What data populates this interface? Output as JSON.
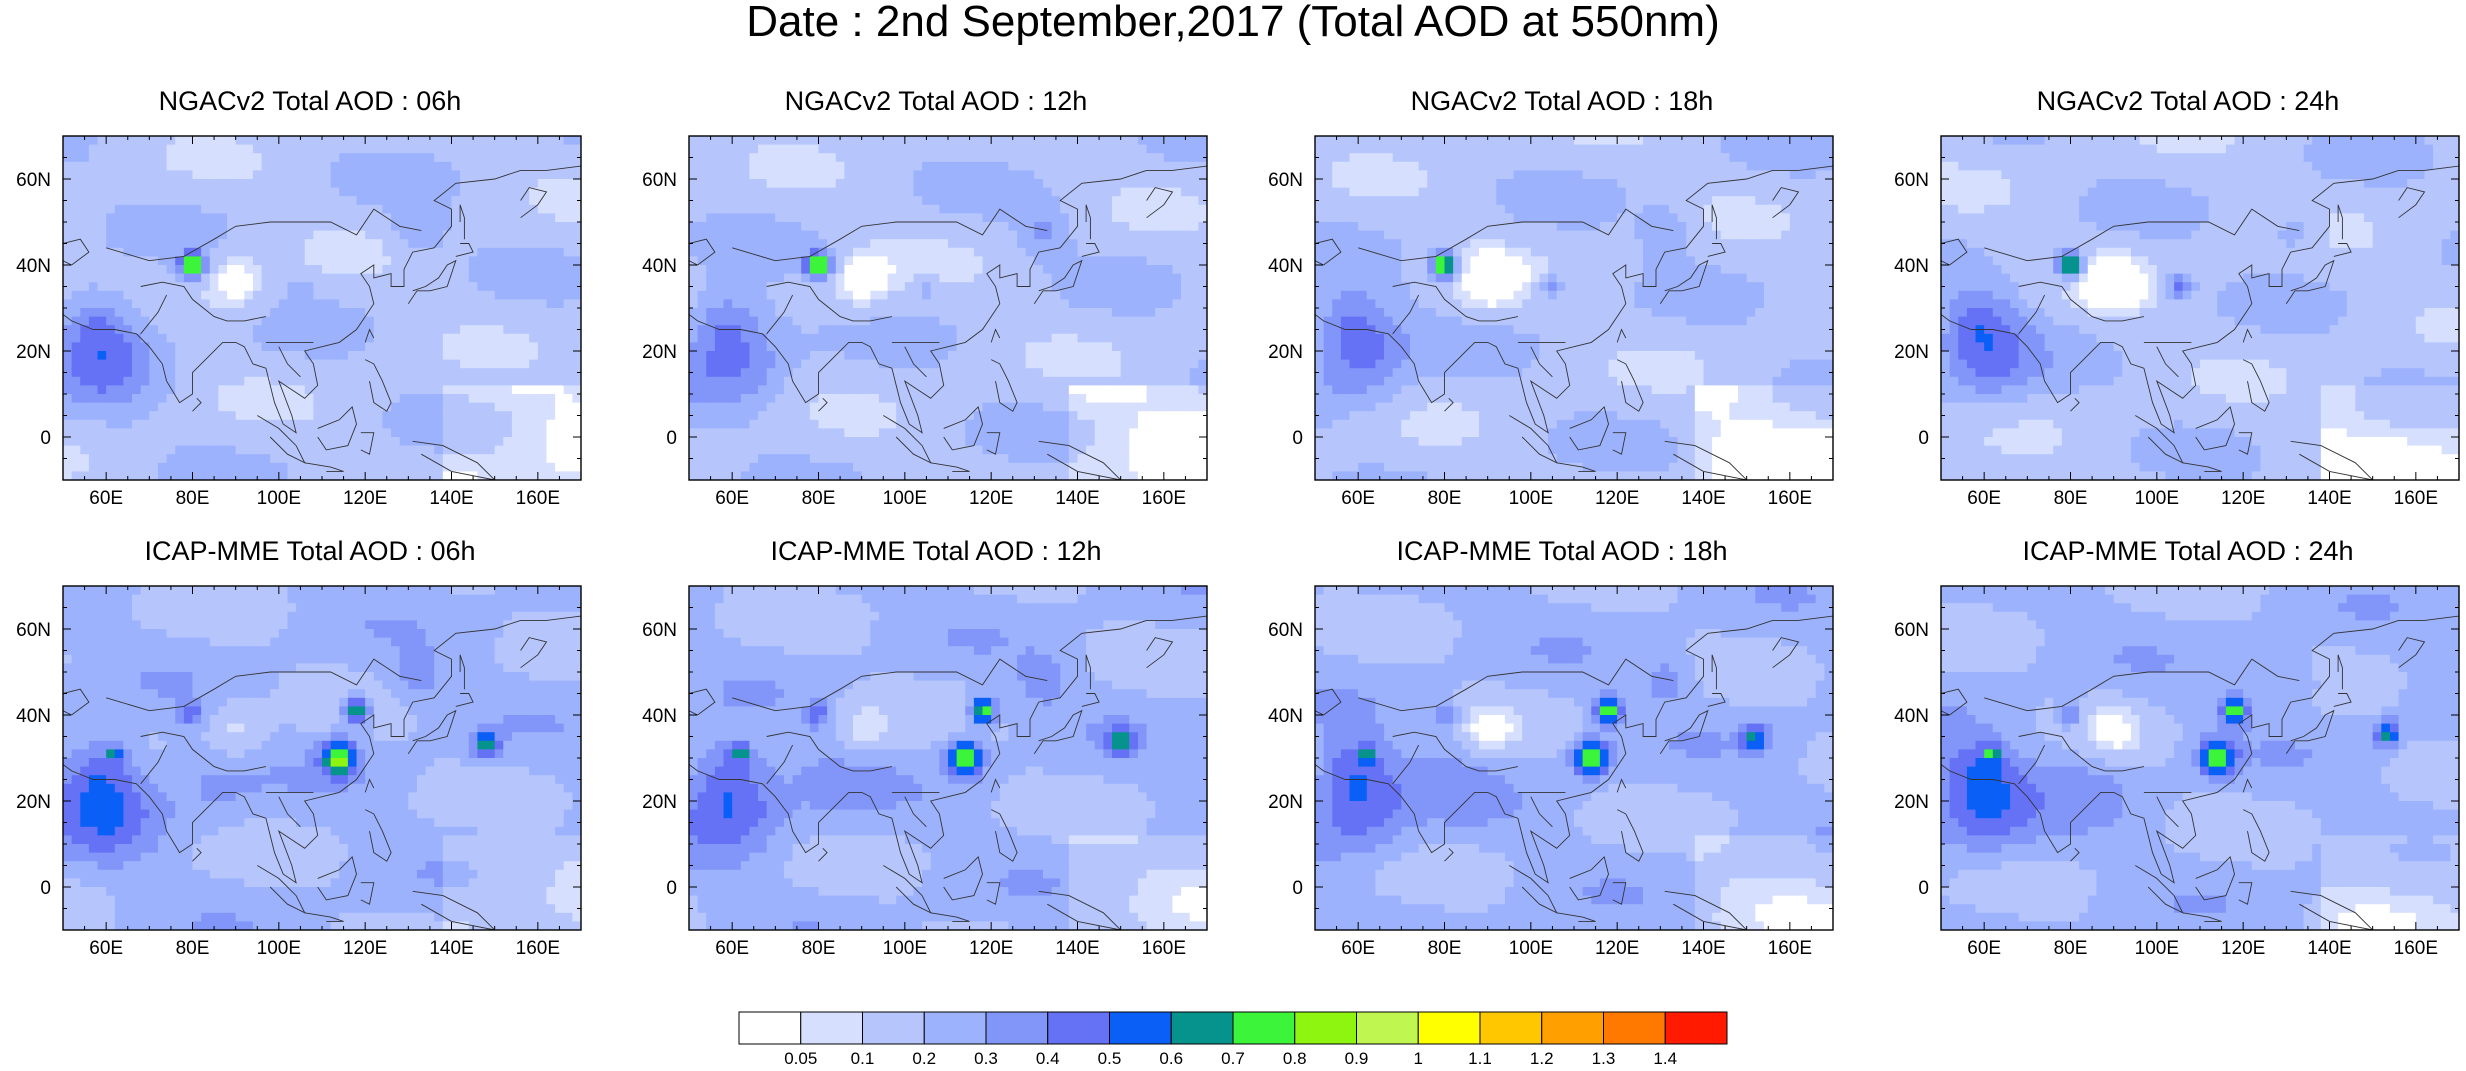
{
  "title": "Date : 2nd September,2017 (Total AOD at 550nm)",
  "map": {
    "lon_range": [
      50,
      170
    ],
    "lat_range": [
      -10,
      70
    ],
    "lon_ticks": [
      60,
      80,
      100,
      120,
      140,
      160
    ],
    "lon_tick_labels": [
      "60E",
      "80E",
      "100E",
      "120E",
      "140E",
      "160E"
    ],
    "lat_ticks": [
      0,
      20,
      40,
      60
    ],
    "lat_tick_labels": [
      "0",
      "20N",
      "40N",
      "60N"
    ]
  },
  "panels": [
    {
      "id": "ngac-06",
      "title": "NGACv2 Total AOD : 06h",
      "model": "NGACv2",
      "hour": 6
    },
    {
      "id": "ngac-12",
      "title": "NGACv2 Total AOD : 12h",
      "model": "NGACv2",
      "hour": 12
    },
    {
      "id": "ngac-18",
      "title": "NGACv2 Total AOD : 18h",
      "model": "NGACv2",
      "hour": 18
    },
    {
      "id": "ngac-24",
      "title": "NGACv2 Total AOD : 24h",
      "model": "NGACv2",
      "hour": 24
    },
    {
      "id": "icap-06",
      "title": "ICAP-MME Total AOD : 06h",
      "model": "ICAP-MME",
      "hour": 6
    },
    {
      "id": "icap-12",
      "title": "ICAP-MME Total AOD : 12h",
      "model": "ICAP-MME",
      "hour": 12
    },
    {
      "id": "icap-18",
      "title": "ICAP-MME Total AOD : 18h",
      "model": "ICAP-MME",
      "hour": 18
    },
    {
      "id": "icap-24",
      "title": "ICAP-MME Total AOD : 24h",
      "model": "ICAP-MME",
      "hour": 24
    }
  ],
  "colorbar": {
    "levels": [
      "0.05",
      "0.1",
      "0.2",
      "0.3",
      "0.4",
      "0.5",
      "0.6",
      "0.7",
      "0.8",
      "0.9",
      "1",
      "1.1",
      "1.2",
      "1.3",
      "1.4"
    ],
    "colors": [
      "#ffffff",
      "#d6e0fe",
      "#b6c6fd",
      "#9db2fd",
      "#8296fa",
      "#6672f5",
      "#0a5ff6",
      "#06938e",
      "#3cf43a",
      "#8ef510",
      "#c0f650",
      "#ffff00",
      "#ffc700",
      "#ffa000",
      "#ff7800",
      "#ff1a00"
    ]
  }
}
